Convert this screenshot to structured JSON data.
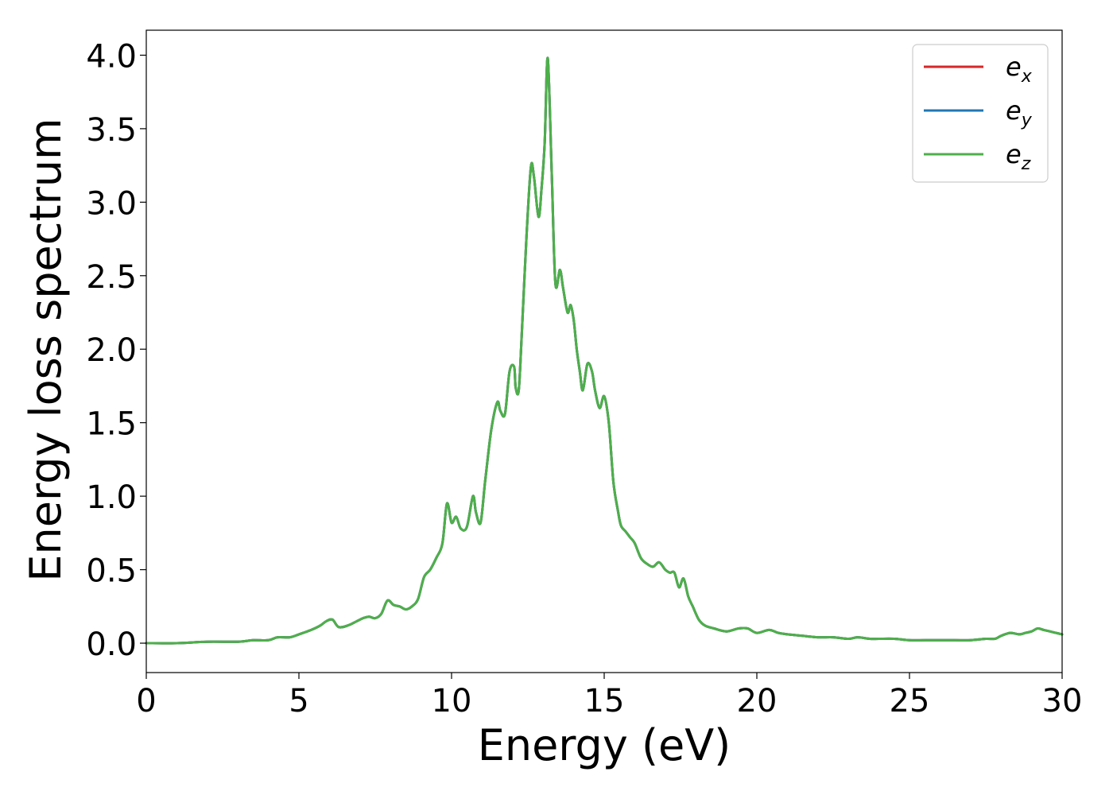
{
  "chart_data": {
    "type": "line",
    "title": "",
    "xlabel": "Energy (eV)",
    "ylabel": "Energy loss spectrum",
    "xlim": [
      0,
      30
    ],
    "ylim": [
      -0.2,
      4.17
    ],
    "xticks": [
      0,
      5,
      10,
      15,
      20,
      25,
      30
    ],
    "xtick_labels": [
      "0",
      "5",
      "10",
      "15",
      "20",
      "25",
      "30"
    ],
    "yticks": [
      0.0,
      0.5,
      1.0,
      1.5,
      2.0,
      2.5,
      3.0,
      3.5,
      4.0
    ],
    "ytick_labels": [
      "0.0",
      "0.5",
      "1.0",
      "1.5",
      "2.0",
      "2.5",
      "3.0",
      "3.5",
      "4.0"
    ],
    "grid": false,
    "legend_position": "top-right",
    "series": [
      {
        "name": "e",
        "subscript": "x",
        "color": "#d62728"
      },
      {
        "name": "e",
        "subscript": "y",
        "color": "#1f77b4"
      },
      {
        "name": "e",
        "subscript": "z",
        "color": "#4daf4a"
      }
    ],
    "x": [
      0,
      1,
      2,
      3,
      3.5,
      4.0,
      4.3,
      4.7,
      5.0,
      5.4,
      5.7,
      5.9,
      6.1,
      6.3,
      6.6,
      6.9,
      7.1,
      7.3,
      7.5,
      7.7,
      7.9,
      8.1,
      8.3,
      8.5,
      8.7,
      8.9,
      9.1,
      9.3,
      9.5,
      9.7,
      9.85,
      10.0,
      10.15,
      10.3,
      10.5,
      10.7,
      10.8,
      10.95,
      11.1,
      11.3,
      11.5,
      11.6,
      11.75,
      11.9,
      12.05,
      12.1,
      12.2,
      12.3,
      12.45,
      12.6,
      12.7,
      12.85,
      12.95,
      13.05,
      13.15,
      13.28,
      13.4,
      13.55,
      13.65,
      13.8,
      13.9,
      14.0,
      14.1,
      14.2,
      14.3,
      14.45,
      14.6,
      14.7,
      14.85,
      15.0,
      15.15,
      15.3,
      15.45,
      15.55,
      15.7,
      15.85,
      16.0,
      16.2,
      16.4,
      16.6,
      16.8,
      17.0,
      17.15,
      17.3,
      17.45,
      17.6,
      17.75,
      17.9,
      18.1,
      18.3,
      18.6,
      19.0,
      19.4,
      19.7,
      20.0,
      20.4,
      20.7,
      21.0,
      21.5,
      22.0,
      22.5,
      23.0,
      23.3,
      23.7,
      24.0,
      24.5,
      25.0,
      25.5,
      26.0,
      26.5,
      27.0,
      27.5,
      27.8,
      28.0,
      28.3,
      28.6,
      28.8,
      29.0,
      29.2,
      29.4,
      29.6,
      29.8,
      30.0
    ],
    "y": [
      0.0,
      0.0,
      0.01,
      0.01,
      0.02,
      0.02,
      0.04,
      0.04,
      0.06,
      0.09,
      0.12,
      0.15,
      0.16,
      0.11,
      0.12,
      0.15,
      0.17,
      0.18,
      0.17,
      0.2,
      0.29,
      0.26,
      0.25,
      0.23,
      0.25,
      0.3,
      0.45,
      0.5,
      0.58,
      0.68,
      0.95,
      0.82,
      0.86,
      0.78,
      0.79,
      1.0,
      0.89,
      0.82,
      1.1,
      1.45,
      1.64,
      1.58,
      1.56,
      1.85,
      1.88,
      1.74,
      1.72,
      2.1,
      2.75,
      3.24,
      3.17,
      2.9,
      3.1,
      3.4,
      3.98,
      3.2,
      2.45,
      2.54,
      2.42,
      2.25,
      2.3,
      2.2,
      2.0,
      1.85,
      1.72,
      1.9,
      1.85,
      1.72,
      1.6,
      1.68,
      1.5,
      1.1,
      0.9,
      0.8,
      0.76,
      0.72,
      0.68,
      0.58,
      0.54,
      0.52,
      0.55,
      0.5,
      0.48,
      0.48,
      0.38,
      0.44,
      0.32,
      0.25,
      0.16,
      0.12,
      0.1,
      0.08,
      0.1,
      0.1,
      0.07,
      0.09,
      0.07,
      0.06,
      0.05,
      0.04,
      0.04,
      0.03,
      0.04,
      0.03,
      0.03,
      0.03,
      0.02,
      0.02,
      0.02,
      0.02,
      0.02,
      0.03,
      0.03,
      0.05,
      0.07,
      0.06,
      0.07,
      0.08,
      0.1,
      0.09,
      0.08,
      0.07,
      0.06
    ]
  }
}
